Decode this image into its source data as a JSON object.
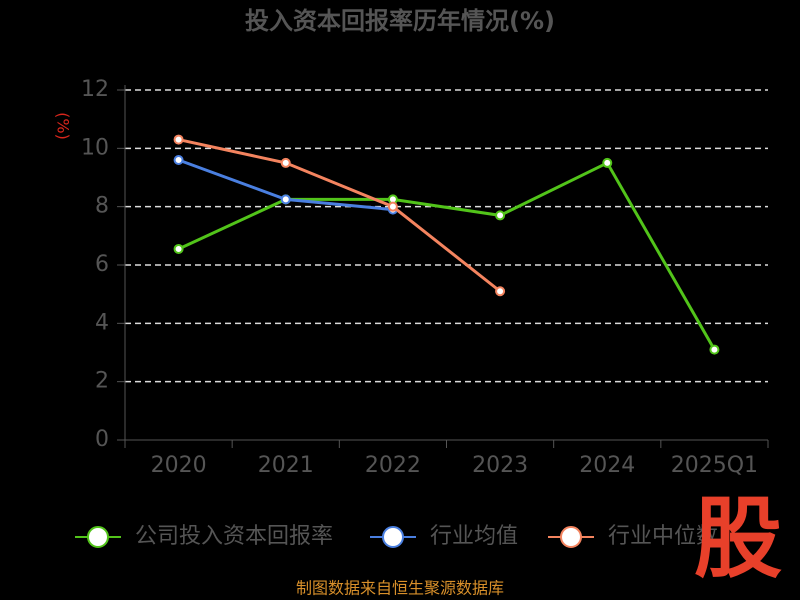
{
  "chart_data": {
    "type": "line",
    "title": "投入资本回报率历年情况(%)",
    "y_label": "(%)",
    "categories": [
      "2020",
      "2021",
      "2022",
      "2023",
      "2024",
      "2025Q1"
    ],
    "series": [
      {
        "name": "公司投入资本回报率",
        "color": "#52c41a",
        "values": [
          6.55,
          8.25,
          8.25,
          7.7,
          9.5,
          3.1
        ]
      },
      {
        "name": "行业均值",
        "color": "#4a7fe0",
        "values": [
          9.6,
          8.25,
          7.9,
          null,
          null,
          null
        ]
      },
      {
        "name": "行业中位数",
        "color": "#f4845f",
        "values": [
          10.3,
          9.5,
          8.0,
          5.1,
          null,
          null
        ]
      }
    ],
    "ylim": [
      0,
      12
    ],
    "yticks": [
      0,
      2,
      4,
      6,
      8,
      10,
      12
    ],
    "grid": true,
    "source": "制图数据来自恒生聚源数据库",
    "watermark": "股"
  }
}
